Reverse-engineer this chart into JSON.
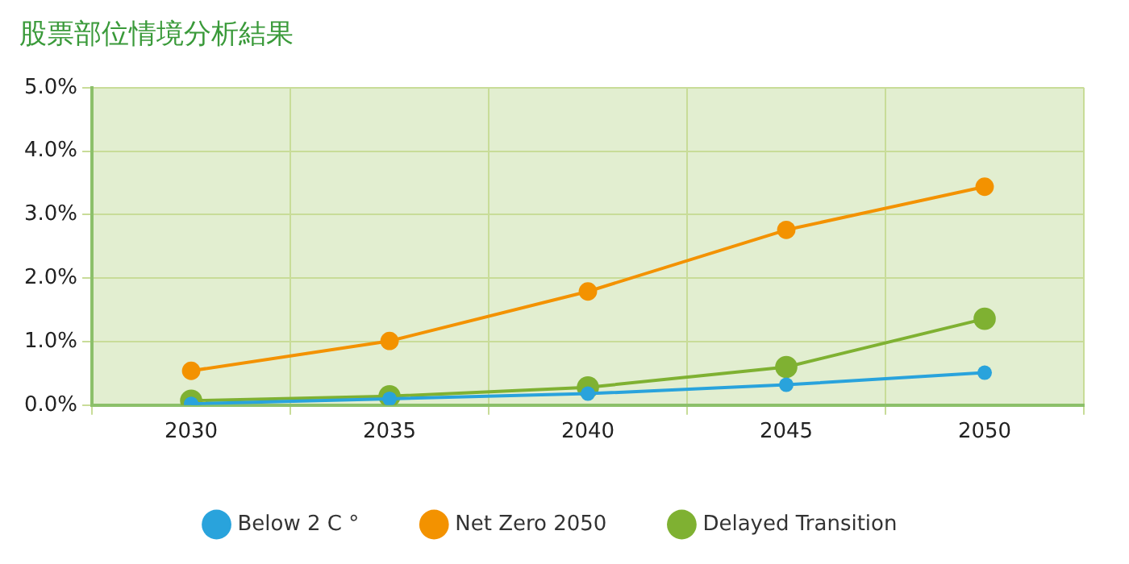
{
  "chart_data": {
    "type": "line",
    "title": "股票部位情境分析結果",
    "categories": [
      "2030",
      "2035",
      "2040",
      "2045",
      "2050"
    ],
    "series": [
      {
        "name": "Below 2 C °",
        "color": "#29a3dc",
        "values": [
          0.02,
          0.1,
          0.18,
          0.32,
          0.51
        ]
      },
      {
        "name": "Net Zero 2050",
        "color": "#f39200",
        "values": [
          0.54,
          1.01,
          1.79,
          2.76,
          3.44
        ]
      },
      {
        "name": "Delayed Transition",
        "color": "#7fb132",
        "values": [
          0.07,
          0.14,
          0.28,
          0.6,
          1.36
        ]
      }
    ],
    "ylim": [
      0,
      5
    ],
    "yticks": [
      {
        "value": 0,
        "label": "0.0%"
      },
      {
        "value": 1,
        "label": "1.0%"
      },
      {
        "value": 2,
        "label": "2.0%"
      },
      {
        "value": 3,
        "label": "3.0%"
      },
      {
        "value": 4,
        "label": "4.0%"
      },
      {
        "value": 5,
        "label": "5.0%"
      }
    ],
    "grid": true,
    "legend": "bottom",
    "marker": "circle",
    "line_style": "solid"
  }
}
